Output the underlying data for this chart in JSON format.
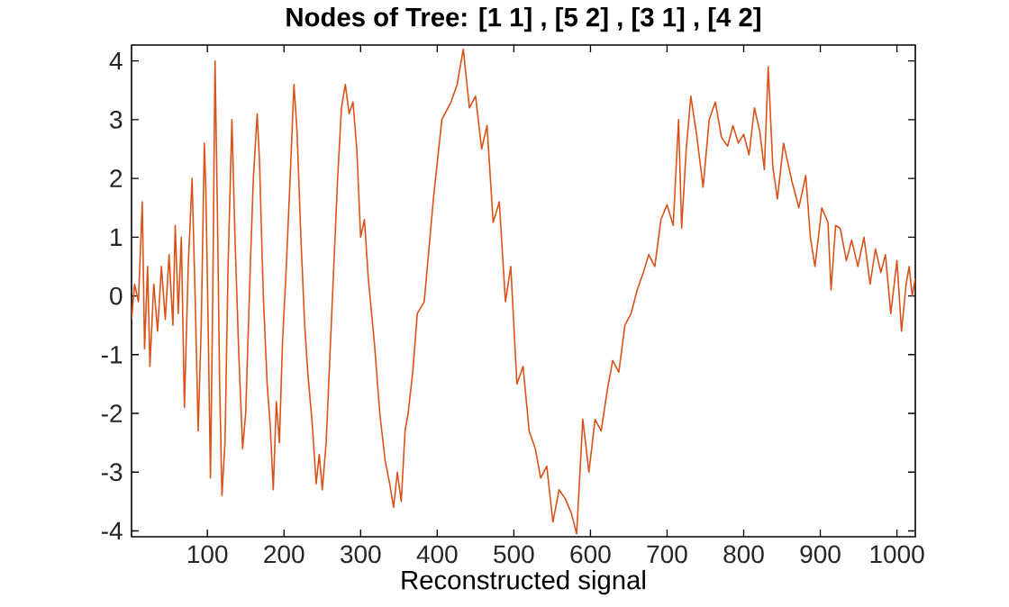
{
  "chart_data": {
    "type": "line",
    "title": "**Nodes of Tree: [1  1] , [5  2] , [3  1] , [4  2]**",
    "xlabel": "Reconstructed signal",
    "x": [
      1,
      5,
      10,
      15,
      18,
      22,
      25,
      30,
      35,
      40,
      45,
      50,
      55,
      58,
      62,
      66,
      70,
      75,
      80,
      84,
      88,
      92,
      96,
      98,
      101,
      104,
      107,
      110,
      113,
      116,
      119,
      123,
      127,
      132,
      136,
      141,
      146,
      150,
      156,
      160,
      165,
      168,
      173,
      178,
      182,
      186,
      190,
      194,
      198,
      203,
      208,
      213,
      217,
      222,
      227,
      231,
      237,
      242,
      246,
      250,
      255,
      260,
      265,
      270,
      275,
      280,
      285,
      290,
      295,
      300,
      305,
      310,
      318,
      325,
      332,
      338,
      343,
      348,
      353,
      358,
      362,
      368,
      374,
      383,
      395,
      406,
      418,
      426,
      434,
      442,
      450,
      458,
      465,
      473,
      481,
      489,
      496,
      504,
      512,
      520,
      528,
      535,
      543,
      551,
      559,
      567,
      575,
      582,
      590,
      598,
      606,
      614,
      622,
      629,
      637,
      645,
      653,
      661,
      669,
      676,
      684,
      692,
      700,
      708,
      715,
      719,
      725,
      731,
      739,
      747,
      755,
      763,
      771,
      779,
      786,
      793,
      800,
      807,
      814,
      821,
      827,
      832,
      838,
      844,
      852,
      863,
      872,
      881,
      887,
      893,
      902,
      910,
      914,
      920,
      926,
      934,
      941,
      949,
      957,
      965,
      972,
      979,
      985,
      992,
      1000,
      1006,
      1012,
      1016,
      1020,
      1024
    ],
    "series": [
      {
        "color": "#d95319",
        "values": [
          -0.4,
          0.2,
          -0.1,
          1.6,
          -0.9,
          0.5,
          -1.2,
          0.2,
          -0.6,
          0.5,
          -0.4,
          0.7,
          -0.5,
          1.2,
          -0.3,
          1.0,
          -1.9,
          0.5,
          2.0,
          0.0,
          -2.3,
          -0.5,
          2.6,
          1.8,
          -0.5,
          -3.1,
          0.0,
          4.0,
          1.5,
          -1.5,
          -3.4,
          -2.5,
          0.5,
          3.0,
          1.0,
          -1.0,
          -2.6,
          -2.0,
          0.5,
          2.0,
          3.1,
          2.3,
          0.0,
          -1.5,
          -2.2,
          -3.3,
          -1.8,
          -2.5,
          -0.8,
          0.5,
          2.0,
          3.6,
          2.8,
          1.0,
          -0.5,
          -1.3,
          -2.2,
          -3.2,
          -2.7,
          -3.3,
          -2.5,
          -1.0,
          0.5,
          2.0,
          3.2,
          3.6,
          3.1,
          3.3,
          2.5,
          1.0,
          1.3,
          0.3,
          -0.8,
          -2.0,
          -2.8,
          -3.2,
          -3.6,
          -3.0,
          -3.5,
          -2.3,
          -2.0,
          -1.3,
          -0.3,
          -0.1,
          1.65,
          3.0,
          3.3,
          3.6,
          4.2,
          3.2,
          3.4,
          2.5,
          2.9,
          1.25,
          1.6,
          -0.1,
          0.5,
          -1.5,
          -1.2,
          -2.3,
          -2.6,
          -3.1,
          -2.9,
          -3.85,
          -3.3,
          -3.45,
          -3.7,
          -4.05,
          -2.1,
          -3.0,
          -2.1,
          -2.3,
          -1.6,
          -1.1,
          -1.3,
          -0.5,
          -0.3,
          0.1,
          0.4,
          0.7,
          0.5,
          1.3,
          1.55,
          1.2,
          3.0,
          1.15,
          2.5,
          3.4,
          2.7,
          1.85,
          3.0,
          3.3,
          2.7,
          2.55,
          2.9,
          2.6,
          2.75,
          2.4,
          3.2,
          2.8,
          2.15,
          3.9,
          2.2,
          1.65,
          2.6,
          1.95,
          1.5,
          2.05,
          1.0,
          0.5,
          1.5,
          1.25,
          0.1,
          1.2,
          1.15,
          0.6,
          0.95,
          0.5,
          1.0,
          0.2,
          0.8,
          0.4,
          0.7,
          -0.3,
          0.6,
          -0.6,
          0.2,
          0.5,
          0.0,
          0.3
        ]
      }
    ],
    "xlim": [
      1,
      1024
    ],
    "ylim": [
      -4.1,
      4.27
    ],
    "xticks": [
      100,
      200,
      300,
      400,
      500,
      600,
      700,
      800,
      900,
      1000
    ],
    "yticks": [
      -4,
      -3,
      -2,
      -1,
      0,
      1,
      2,
      3,
      4
    ],
    "line_style": "solid",
    "marker": "none"
  }
}
